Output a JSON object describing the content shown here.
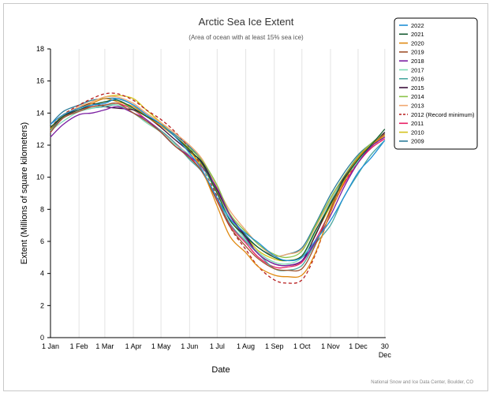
{
  "chart_data": {
    "type": "line",
    "title": "Arctic Sea Ice Extent",
    "subtitle": "(Area of ocean with at least 15% sea ice)",
    "xlabel": "Date",
    "ylabel": "Extent (Millions of square kilometers)",
    "ylim": [
      0,
      18
    ],
    "yticks": [
      0,
      2,
      4,
      6,
      8,
      10,
      12,
      14,
      16,
      18
    ],
    "xlim": [
      1,
      365
    ],
    "xticks": [
      {
        "day": 1,
        "label": "1 Jan"
      },
      {
        "day": 32,
        "label": "1 Feb"
      },
      {
        "day": 60,
        "label": "1 Mar"
      },
      {
        "day": 91,
        "label": "1 Apr"
      },
      {
        "day": 121,
        "label": "1 May"
      },
      {
        "day": 152,
        "label": "1 Jun"
      },
      {
        "day": 182,
        "label": "1 Jul"
      },
      {
        "day": 213,
        "label": "1 Aug"
      },
      {
        "day": 244,
        "label": "1 Sep"
      },
      {
        "day": 274,
        "label": "1 Oct"
      },
      {
        "day": 305,
        "label": "1 Nov"
      },
      {
        "day": 335,
        "label": "1 Dec"
      },
      {
        "day": 364,
        "label": "30",
        "label2": "Dec"
      }
    ],
    "grid": "vertical",
    "legend_position": "top-right",
    "x_days": [
      1,
      15,
      32,
      46,
      60,
      74,
      91,
      105,
      121,
      135,
      152,
      166,
      182,
      196,
      213,
      227,
      244,
      258,
      274,
      288,
      305,
      319,
      335,
      349,
      364
    ],
    "series": [
      {
        "name": "2022",
        "color": "#1f8fd6",
        "dashed": false,
        "values": [
          13.3,
          13.9,
          14.3,
          14.5,
          14.6,
          14.9,
          14.5,
          13.9,
          13.3,
          12.6,
          11.5,
          10.4,
          8.7,
          7.4,
          6.5,
          5.9,
          5.1,
          4.8,
          5.0,
          6.0,
          7.3,
          8.7,
          10.3,
          11.2,
          12.3
        ]
      },
      {
        "name": "2021",
        "color": "#145a32",
        "dashed": false,
        "values": [
          13.1,
          13.8,
          14.2,
          14.5,
          14.7,
          14.8,
          14.3,
          13.8,
          13.3,
          12.6,
          11.7,
          10.8,
          9.0,
          7.3,
          6.3,
          5.6,
          5.0,
          4.8,
          5.1,
          6.6,
          8.3,
          9.8,
          11.1,
          12.0,
          13.0
        ]
      },
      {
        "name": "2020",
        "color": "#e08a12",
        "dashed": false,
        "values": [
          13.0,
          13.9,
          14.3,
          14.6,
          14.9,
          14.7,
          14.4,
          13.8,
          13.2,
          12.6,
          11.7,
          10.4,
          8.2,
          6.3,
          5.3,
          4.4,
          3.9,
          3.8,
          3.9,
          5.2,
          7.8,
          9.6,
          11.2,
          12.0,
          12.6
        ]
      },
      {
        "name": "2019",
        "color": "#a0522d",
        "dashed": false,
        "values": [
          12.8,
          13.7,
          14.1,
          14.4,
          14.5,
          14.6,
          14.0,
          13.5,
          12.8,
          12.0,
          11.2,
          10.3,
          8.5,
          6.9,
          5.7,
          4.9,
          4.3,
          4.2,
          4.3,
          5.7,
          8.0,
          9.8,
          11.2,
          12.0,
          12.7
        ]
      },
      {
        "name": "2018",
        "color": "#7b1fa2",
        "dashed": false,
        "values": [
          12.5,
          13.3,
          13.9,
          14.0,
          14.2,
          14.4,
          14.0,
          13.6,
          12.8,
          12.0,
          11.3,
          10.6,
          9.3,
          7.6,
          6.2,
          5.2,
          4.6,
          4.5,
          4.8,
          5.9,
          7.6,
          9.3,
          10.9,
          11.9,
          12.5
        ]
      },
      {
        "name": "2017",
        "color": "#7fdbb6",
        "dashed": false,
        "values": [
          12.9,
          13.5,
          14.1,
          14.3,
          14.5,
          14.5,
          14.0,
          13.4,
          12.8,
          12.1,
          11.4,
          10.6,
          9.0,
          7.4,
          6.1,
          5.3,
          4.7,
          4.6,
          5.0,
          6.5,
          8.5,
          9.8,
          11.0,
          12.0,
          12.7
        ]
      },
      {
        "name": "2016",
        "color": "#4aa8a0",
        "dashed": false,
        "values": [
          12.9,
          13.7,
          14.1,
          14.3,
          14.4,
          14.5,
          14.0,
          13.5,
          12.9,
          12.2,
          11.1,
          10.3,
          8.7,
          7.1,
          6.0,
          5.2,
          4.3,
          4.2,
          4.5,
          5.8,
          7.0,
          8.7,
          10.2,
          11.4,
          12.3
        ]
      },
      {
        "name": "2015",
        "color": "#3b0f3b",
        "dashed": false,
        "values": [
          13.0,
          13.8,
          14.3,
          14.6,
          14.4,
          14.3,
          14.2,
          13.8,
          13.1,
          12.4,
          11.6,
          10.9,
          9.2,
          7.6,
          6.3,
          5.2,
          4.6,
          4.5,
          4.8,
          6.3,
          8.4,
          9.9,
          11.1,
          11.9,
          12.8
        ]
      },
      {
        "name": "2014",
        "color": "#8bc34a",
        "dashed": false,
        "values": [
          13.0,
          13.8,
          14.3,
          14.5,
          14.7,
          14.8,
          14.2,
          13.8,
          13.2,
          12.6,
          11.8,
          11.0,
          9.5,
          7.7,
          6.6,
          5.8,
          5.2,
          5.0,
          5.4,
          6.9,
          8.7,
          10.0,
          11.3,
          12.1,
          12.8
        ]
      },
      {
        "name": "2013",
        "color": "#f0a872",
        "dashed": false,
        "values": [
          13.0,
          13.8,
          14.4,
          14.7,
          15.0,
          15.0,
          14.6,
          14.0,
          13.4,
          12.8,
          12.0,
          11.1,
          9.4,
          7.9,
          6.7,
          5.8,
          5.1,
          5.2,
          5.5,
          6.8,
          8.6,
          10.0,
          11.2,
          12.0,
          12.7
        ]
      },
      {
        "name": "2012 (Record minimum)",
        "color": "#b71c1c",
        "dashed": true,
        "values": [
          13.1,
          13.9,
          14.5,
          14.9,
          15.2,
          15.2,
          14.8,
          14.2,
          13.6,
          12.9,
          11.8,
          10.6,
          8.8,
          6.9,
          5.5,
          4.4,
          3.6,
          3.4,
          3.6,
          5.1,
          7.8,
          9.6,
          11.0,
          11.9,
          12.5
        ]
      },
      {
        "name": "2011",
        "color": "#e91e63",
        "dashed": false,
        "values": [
          12.8,
          13.7,
          14.2,
          14.4,
          14.5,
          14.6,
          14.2,
          13.6,
          12.9,
          12.2,
          11.3,
          10.3,
          8.6,
          7.0,
          5.9,
          5.0,
          4.4,
          4.4,
          4.7,
          6.0,
          7.9,
          9.5,
          10.9,
          11.8,
          12.4
        ]
      },
      {
        "name": "2010",
        "color": "#d4c21a",
        "dashed": false,
        "values": [
          13.1,
          13.8,
          14.3,
          14.7,
          15.0,
          15.1,
          14.9,
          14.2,
          13.4,
          12.6,
          11.6,
          10.7,
          9.1,
          7.4,
          6.3,
          5.4,
          4.9,
          4.8,
          5.1,
          6.4,
          8.2,
          9.7,
          11.0,
          11.9,
          12.6
        ]
      },
      {
        "name": "2009",
        "color": "#2e7d9a",
        "dashed": false,
        "values": [
          13.3,
          14.1,
          14.5,
          14.8,
          14.9,
          14.9,
          14.5,
          13.9,
          13.3,
          12.7,
          11.9,
          11.0,
          9.4,
          7.6,
          6.4,
          5.6,
          5.1,
          5.2,
          5.6,
          7.0,
          8.9,
          10.2,
          11.4,
          12.1,
          12.8
        ]
      }
    ],
    "credit": "National Snow and Ice Data Center, Boulder, CO"
  }
}
